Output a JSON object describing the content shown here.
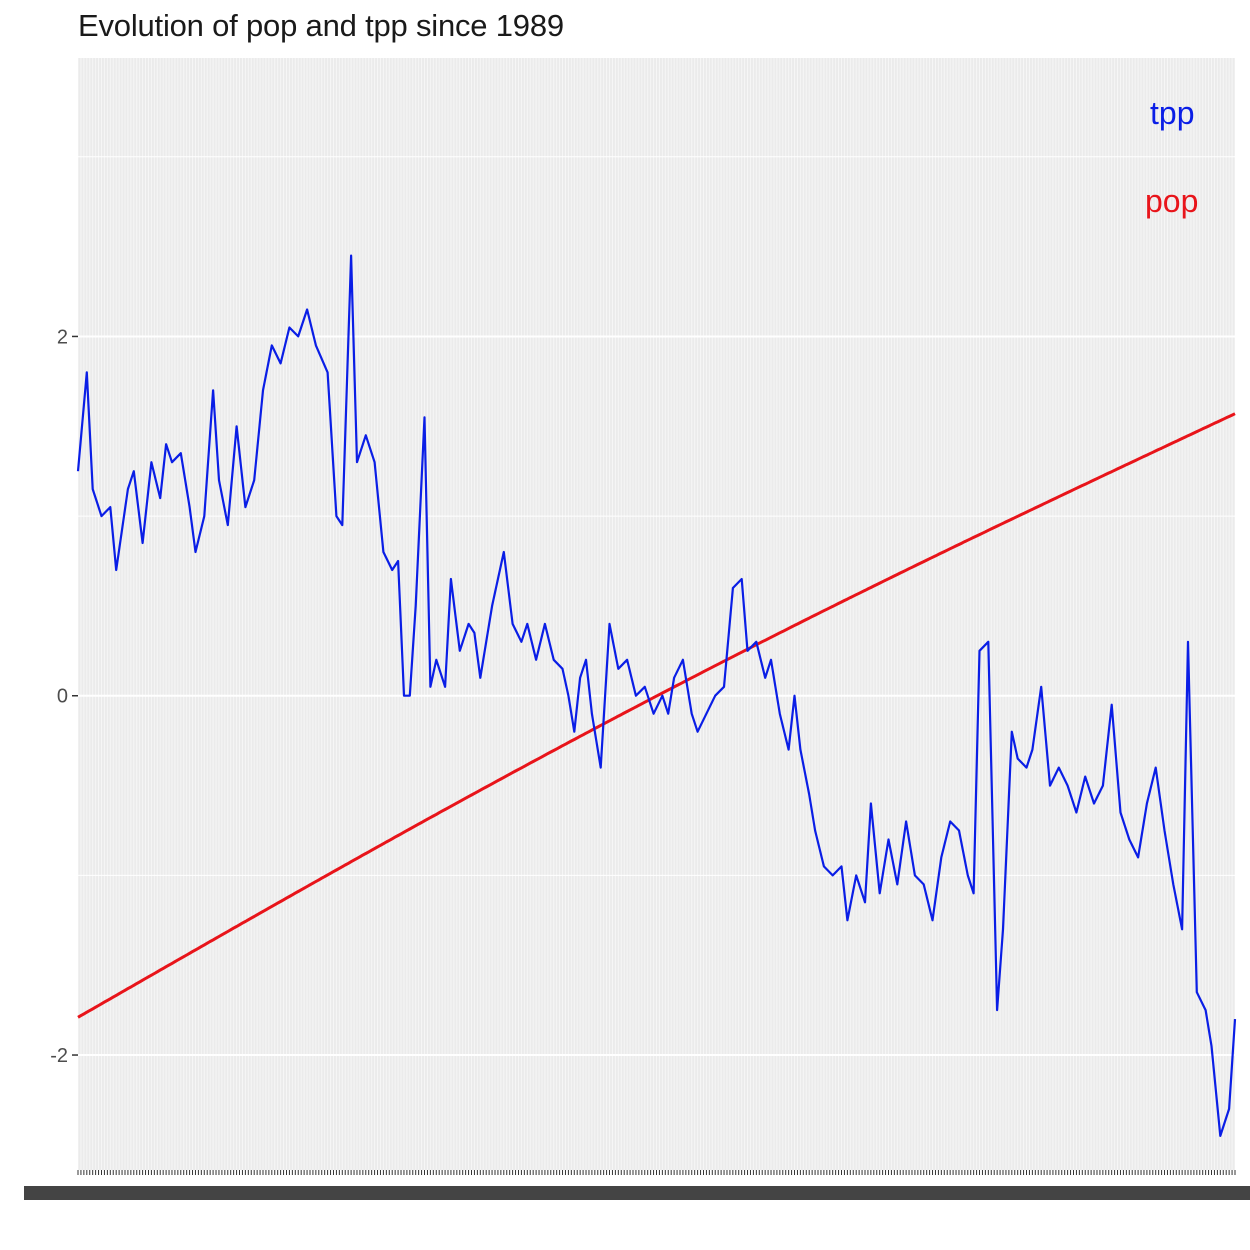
{
  "chart_data": {
    "type": "line",
    "title": "Evolution of pop and tpp since 1989",
    "xlabel": "",
    "ylabel": "",
    "ylim": [
      -2.64,
      3.55
    ],
    "yticks": [
      -2,
      0,
      2
    ],
    "ytick_labels": [
      "-2",
      "0",
      "2"
    ],
    "x_count": 395,
    "grid": "on",
    "legend": "top-right",
    "colors": {
      "tpp": "#0a1ee6",
      "pop": "#e8141a",
      "panel": "#ebebeb",
      "grid": "#ffffff"
    },
    "series": [
      {
        "name": "pop",
        "color": "#e8141a",
        "linear": [
          -1.79,
          1.57
        ]
      },
      {
        "name": "tpp",
        "color": "#0a1ee6",
        "keypoints": [
          [
            0,
            1.25
          ],
          [
            3,
            1.8
          ],
          [
            5,
            1.15
          ],
          [
            8,
            1.0
          ],
          [
            11,
            1.05
          ],
          [
            13,
            0.7
          ],
          [
            17,
            1.15
          ],
          [
            19,
            1.25
          ],
          [
            22,
            0.85
          ],
          [
            25,
            1.3
          ],
          [
            28,
            1.1
          ],
          [
            30,
            1.4
          ],
          [
            32,
            1.3
          ],
          [
            35,
            1.35
          ],
          [
            38,
            1.05
          ],
          [
            40,
            0.8
          ],
          [
            43,
            1.0
          ],
          [
            46,
            1.7
          ],
          [
            48,
            1.2
          ],
          [
            51,
            0.95
          ],
          [
            54,
            1.5
          ],
          [
            57,
            1.05
          ],
          [
            60,
            1.2
          ],
          [
            63,
            1.7
          ],
          [
            66,
            1.95
          ],
          [
            69,
            1.85
          ],
          [
            72,
            2.05
          ],
          [
            75,
            2.0
          ],
          [
            78,
            2.15
          ],
          [
            81,
            1.95
          ],
          [
            85,
            1.8
          ],
          [
            88,
            1.0
          ],
          [
            90,
            0.95
          ],
          [
            93,
            2.45
          ],
          [
            95,
            1.3
          ],
          [
            98,
            1.45
          ],
          [
            101,
            1.3
          ],
          [
            104,
            0.8
          ],
          [
            107,
            0.7
          ],
          [
            109,
            0.75
          ],
          [
            111,
            0.0
          ],
          [
            113,
            0.0
          ],
          [
            115,
            0.5
          ],
          [
            118,
            1.55
          ],
          [
            120,
            0.05
          ],
          [
            122,
            0.2
          ],
          [
            125,
            0.05
          ],
          [
            127,
            0.65
          ],
          [
            130,
            0.25
          ],
          [
            133,
            0.4
          ],
          [
            135,
            0.35
          ],
          [
            137,
            0.1
          ],
          [
            141,
            0.5
          ],
          [
            145,
            0.8
          ],
          [
            148,
            0.4
          ],
          [
            151,
            0.3
          ],
          [
            153,
            0.4
          ],
          [
            156,
            0.2
          ],
          [
            159,
            0.4
          ],
          [
            162,
            0.2
          ],
          [
            165,
            0.15
          ],
          [
            167,
            0.0
          ],
          [
            169,
            -0.2
          ],
          [
            171,
            0.1
          ],
          [
            173,
            0.2
          ],
          [
            175,
            -0.1
          ],
          [
            178,
            -0.4
          ],
          [
            181,
            0.4
          ],
          [
            184,
            0.15
          ],
          [
            187,
            0.2
          ],
          [
            190,
            0.0
          ],
          [
            193,
            0.05
          ],
          [
            196,
            -0.1
          ],
          [
            199,
            0.0
          ],
          [
            201,
            -0.1
          ],
          [
            203,
            0.1
          ],
          [
            206,
            0.2
          ],
          [
            209,
            -0.1
          ],
          [
            211,
            -0.2
          ],
          [
            214,
            -0.1
          ],
          [
            217,
            0.0
          ],
          [
            220,
            0.05
          ],
          [
            223,
            0.6
          ],
          [
            226,
            0.65
          ],
          [
            228,
            0.25
          ],
          [
            231,
            0.3
          ],
          [
            234,
            0.1
          ],
          [
            236,
            0.2
          ],
          [
            239,
            -0.1
          ],
          [
            242,
            -0.3
          ],
          [
            244,
            0.0
          ],
          [
            246,
            -0.3
          ],
          [
            249,
            -0.55
          ],
          [
            251,
            -0.75
          ],
          [
            254,
            -0.95
          ],
          [
            257,
            -1.0
          ],
          [
            260,
            -0.95
          ],
          [
            262,
            -1.25
          ],
          [
            265,
            -1.0
          ],
          [
            268,
            -1.15
          ],
          [
            270,
            -0.6
          ],
          [
            273,
            -1.1
          ],
          [
            276,
            -0.8
          ],
          [
            279,
            -1.05
          ],
          [
            282,
            -0.7
          ],
          [
            285,
            -1.0
          ],
          [
            288,
            -1.05
          ],
          [
            291,
            -1.25
          ],
          [
            294,
            -0.9
          ],
          [
            297,
            -0.7
          ],
          [
            300,
            -0.75
          ],
          [
            303,
            -1.0
          ],
          [
            305,
            -1.1
          ],
          [
            307,
            0.25
          ],
          [
            310,
            0.3
          ],
          [
            313,
            -1.75
          ],
          [
            315,
            -1.3
          ],
          [
            318,
            -0.2
          ],
          [
            320,
            -0.35
          ],
          [
            323,
            -0.4
          ],
          [
            325,
            -0.3
          ],
          [
            328,
            0.05
          ],
          [
            331,
            -0.5
          ],
          [
            334,
            -0.4
          ],
          [
            337,
            -0.5
          ],
          [
            340,
            -0.65
          ],
          [
            343,
            -0.45
          ],
          [
            346,
            -0.6
          ],
          [
            349,
            -0.5
          ],
          [
            352,
            -0.05
          ],
          [
            355,
            -0.65
          ],
          [
            358,
            -0.8
          ],
          [
            361,
            -0.9
          ],
          [
            364,
            -0.6
          ],
          [
            367,
            -0.4
          ],
          [
            370,
            -0.75
          ],
          [
            373,
            -1.05
          ],
          [
            376,
            -1.3
          ],
          [
            378,
            0.3
          ],
          [
            381,
            -1.65
          ],
          [
            384,
            -1.75
          ],
          [
            386,
            -1.95
          ],
          [
            389,
            -2.45
          ],
          [
            392,
            -2.3
          ],
          [
            394,
            -1.8
          ]
        ]
      }
    ]
  }
}
